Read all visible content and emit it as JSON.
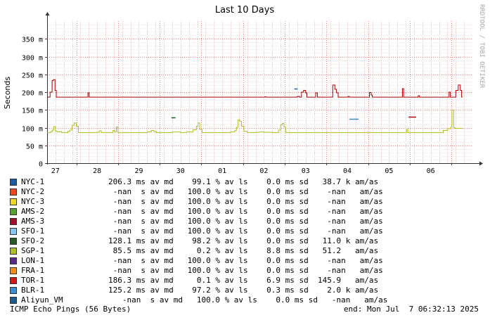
{
  "watermark": "RRDTOOL / TOBI OETIKER",
  "chart_data": {
    "type": "line",
    "title": "Last 10 Days",
    "ylabel": "Seconds",
    "xlabel": "",
    "ylim": [
      0,
      0.4
    ],
    "xlim": [
      26.8,
      37.0
    ],
    "y_ticks": [
      0,
      0.05,
      0.1,
      0.15,
      0.2,
      0.25,
      0.3,
      0.35
    ],
    "y_tick_labels": [
      "0",
      "50 m",
      "100 m",
      "150 m",
      "200 m",
      "250 m",
      "300 m",
      "350 m"
    ],
    "x_ticks": [
      27,
      28,
      29,
      30,
      31,
      32,
      33,
      34,
      35,
      36
    ],
    "x_tick_labels": [
      "27",
      "28",
      "29",
      "30",
      "01",
      "02",
      "03",
      "04",
      "05",
      "06"
    ],
    "grid": true,
    "series": [
      {
        "name": "TOR-1",
        "color": "#aa0000",
        "points": [
          [
            26.8,
            0.186
          ],
          [
            26.83,
            0.186
          ],
          [
            26.87,
            0.2
          ],
          [
            26.92,
            0.232
          ],
          [
            26.95,
            0.235
          ],
          [
            26.99,
            0.205
          ],
          [
            27.02,
            0.186
          ],
          [
            27.5,
            0.186
          ],
          [
            27.75,
            0.186
          ],
          [
            27.78,
            0.198
          ],
          [
            27.81,
            0.186
          ],
          [
            28.5,
            0.186
          ],
          [
            29.5,
            0.186
          ],
          [
            30.5,
            0.186
          ],
          [
            31.5,
            0.186
          ],
          [
            32.0,
            0.186
          ],
          [
            32.02,
            0.187
          ],
          [
            32.05,
            0.186
          ],
          [
            32.5,
            0.186
          ],
          [
            32.77,
            0.186
          ],
          [
            32.8,
            0.188
          ],
          [
            32.85,
            0.186
          ],
          [
            32.9,
            0.2
          ],
          [
            32.95,
            0.205
          ],
          [
            33.0,
            0.198
          ],
          [
            33.03,
            0.186
          ],
          [
            33.2,
            0.186
          ],
          [
            33.24,
            0.198
          ],
          [
            33.28,
            0.186
          ],
          [
            33.6,
            0.186
          ],
          [
            33.65,
            0.22
          ],
          [
            33.7,
            0.208
          ],
          [
            33.74,
            0.198
          ],
          [
            33.78,
            0.186
          ],
          [
            34.0,
            0.186
          ],
          [
            34.02,
            0.188
          ],
          [
            34.05,
            0.186
          ],
          [
            34.5,
            0.186
          ],
          [
            34.53,
            0.199
          ],
          [
            34.57,
            0.192
          ],
          [
            34.6,
            0.186
          ],
          [
            35.0,
            0.186
          ],
          [
            35.3,
            0.186
          ],
          [
            35.32,
            0.21
          ],
          [
            35.35,
            0.186
          ],
          [
            35.68,
            0.186
          ],
          [
            35.7,
            0.19
          ],
          [
            35.73,
            0.186
          ],
          [
            36.4,
            0.186
          ],
          [
            36.44,
            0.2
          ],
          [
            36.47,
            0.186
          ],
          [
            36.55,
            0.186
          ],
          [
            36.6,
            0.205
          ],
          [
            36.66,
            0.22
          ],
          [
            36.71,
            0.205
          ],
          [
            36.74,
            0.186
          ],
          [
            36.76,
            0.186
          ]
        ]
      },
      {
        "name": "SGP-1",
        "color": "#b0c020",
        "points": [
          [
            26.8,
            0.086
          ],
          [
            26.88,
            0.088
          ],
          [
            26.92,
            0.093
          ],
          [
            26.96,
            0.103
          ],
          [
            27.0,
            0.09
          ],
          [
            27.05,
            0.088
          ],
          [
            27.1,
            0.089
          ],
          [
            27.15,
            0.086
          ],
          [
            27.25,
            0.086
          ],
          [
            27.3,
            0.09
          ],
          [
            27.35,
            0.093
          ],
          [
            27.4,
            0.107
          ],
          [
            27.45,
            0.113
          ],
          [
            27.5,
            0.104
          ],
          [
            27.55,
            0.086
          ],
          [
            27.9,
            0.086
          ],
          [
            28.0,
            0.087
          ],
          [
            28.05,
            0.091
          ],
          [
            28.1,
            0.086
          ],
          [
            28.35,
            0.086
          ],
          [
            28.38,
            0.092
          ],
          [
            28.42,
            0.088
          ],
          [
            28.46,
            0.102
          ],
          [
            28.5,
            0.086
          ],
          [
            29.0,
            0.086
          ],
          [
            29.2,
            0.088
          ],
          [
            29.3,
            0.092
          ],
          [
            29.36,
            0.089
          ],
          [
            29.42,
            0.086
          ],
          [
            29.6,
            0.086
          ],
          [
            29.8,
            0.088
          ],
          [
            29.9,
            0.088
          ],
          [
            30.0,
            0.086
          ],
          [
            30.15,
            0.088
          ],
          [
            30.3,
            0.094
          ],
          [
            30.38,
            0.104
          ],
          [
            30.42,
            0.113
          ],
          [
            30.46,
            0.095
          ],
          [
            30.52,
            0.086
          ],
          [
            31.0,
            0.086
          ],
          [
            31.2,
            0.088
          ],
          [
            31.3,
            0.092
          ],
          [
            31.34,
            0.101
          ],
          [
            31.38,
            0.122
          ],
          [
            31.42,
            0.118
          ],
          [
            31.46,
            0.104
          ],
          [
            31.52,
            0.09
          ],
          [
            31.6,
            0.086
          ],
          [
            31.8,
            0.087
          ],
          [
            31.9,
            0.088
          ],
          [
            32.0,
            0.087
          ],
          [
            32.2,
            0.086
          ],
          [
            32.35,
            0.093
          ],
          [
            32.4,
            0.108
          ],
          [
            32.44,
            0.112
          ],
          [
            32.48,
            0.102
          ],
          [
            32.52,
            0.086
          ],
          [
            33.0,
            0.086
          ],
          [
            34.0,
            0.086
          ],
          [
            35.0,
            0.086
          ],
          [
            35.4,
            0.086
          ],
          [
            35.42,
            0.095
          ],
          [
            35.45,
            0.086
          ],
          [
            36.0,
            0.086
          ],
          [
            36.2,
            0.086
          ],
          [
            36.3,
            0.092
          ],
          [
            36.4,
            0.097
          ],
          [
            36.48,
            0.102
          ],
          [
            36.51,
            0.15
          ],
          [
            36.55,
            0.1
          ],
          [
            36.58,
            0.098
          ],
          [
            36.62,
            0.098
          ],
          [
            36.76,
            0.098
          ]
        ]
      }
    ],
    "segments": [
      {
        "name": "NYC-1",
        "color": "#1e5aa0",
        "x": [
          32.73,
          32.81
        ],
        "y": 0.209
      },
      {
        "name": "SFO-2",
        "color": "#285a28",
        "x": [
          29.78,
          29.88
        ],
        "y": 0.128
      },
      {
        "name": "BLR-1",
        "color": "#3a8cd0",
        "x": [
          34.05,
          34.27
        ],
        "y": 0.125
      },
      {
        "name": "TOR-1",
        "color": "#aa0000",
        "x": [
          35.47,
          35.65
        ],
        "y": 0.131
      }
    ]
  },
  "legend": [
    {
      "name": "NYC-1",
      "color": "#1e5aa0",
      "stats": "206.3 ms av md    99.1 % av ls    0.0 ms sd   38.7 k am/as"
    },
    {
      "name": "NYC-2",
      "color": "#e84a1e",
      "stats": " -nan  s av md   100.0 % av ls    0.0 ms sd    -nan   am/as"
    },
    {
      "name": "NYC-3",
      "color": "#ecd828",
      "stats": " -nan  s av md   100.0 % av ls    0.0 ms sd    -nan   am/as"
    },
    {
      "name": "AMS-2",
      "color": "#58a030",
      "stats": " -nan  s av md   100.0 % av ls    0.0 ms sd    -nan   am/as"
    },
    {
      "name": "AMS-3",
      "color": "#a0102a",
      "stats": " -nan  s av md   100.0 % av ls    0.0 ms sd    -nan   am/as"
    },
    {
      "name": "SFO-1",
      "color": "#88c8f0",
      "stats": " -nan  s av md   100.0 % av ls    0.0 ms sd    -nan   am/as"
    },
    {
      "name": "SFO-2",
      "color": "#285a28",
      "stats": "128.1 ms av md    98.2 % av ls    0.0 ms sd   11.0 k am/as"
    },
    {
      "name": "SGP-1",
      "color": "#b0c020",
      "stats": " 85.5 ms av md     0.2 % av ls    8.8 ms sd   51.2   am/as"
    },
    {
      "name": "LON-1",
      "color": "#5a2a8a",
      "stats": " -nan  s av md   100.0 % av ls    0.0 ms sd    -nan   am/as"
    },
    {
      "name": "FRA-1",
      "color": "#f09018",
      "stats": " -nan  s av md   100.0 % av ls    0.0 ms sd    -nan   am/as"
    },
    {
      "name": "TOR-1",
      "color": "#d01818",
      "stats": "186.3 ms av md     0.1 % av ls    6.9 ms sd  145.9   am/as"
    },
    {
      "name": "BLR-1",
      "color": "#3a8cd0",
      "stats": "125.2 ms av md    97.2 % av ls    0.3 ms sd    2.0 k am/as"
    },
    {
      "name": "Aliyun_VM",
      "color": "#1e5a8a",
      "stats": "   -nan  s av md   100.0 % av ls    0.0 ms sd   -nan   am/as"
    }
  ],
  "footer": {
    "left": "ICMP Echo Pings (56 Bytes)",
    "right": "end: Mon Jul  7 06:32:13 2025"
  }
}
